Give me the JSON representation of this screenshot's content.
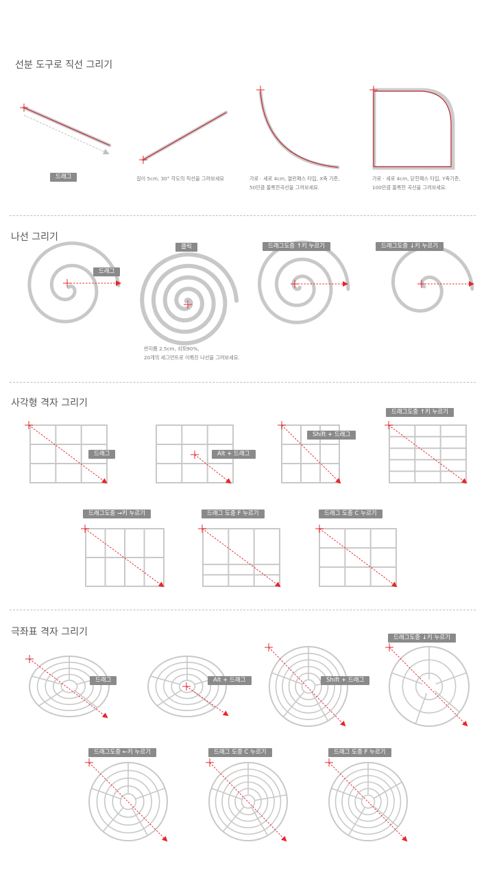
{
  "sections": {
    "line": {
      "title": "선분 도구로 직선 그리기"
    },
    "spiral": {
      "title": "나선 그리기"
    },
    "rect_grid": {
      "title": "사각형 격자 그리기"
    },
    "polar_grid": {
      "title": "극좌표 격자 그리기"
    }
  },
  "line": {
    "drag_tag": "드래그",
    "caption1": "길이 5cm, 30° 각도의 직선을 그려보세요",
    "caption2_line1": "가로 · 세로 4cm, 열린패스 타입, X축 기준,",
    "caption2_line2": "50만큼 볼록한곡선을 그려보세요.",
    "caption3_line1": "가로 · 세로 4cm, 닫힌패스 타입, Y축기준,",
    "caption3_line2": "100만큼 볼록한 곡선을 그려보세요."
  },
  "spiral": {
    "drag_tag": "드래그",
    "click_tag": "클릭",
    "up_tag": "드래그도중 ↑키 누르기",
    "down_tag": "드래그도중 ↓키 누르기",
    "caption_line1": "반지름 2.5cm, 쇠퇴90%,",
    "caption_line2": "20개의 세그먼트로 이뤄진 나선을 그려보세요."
  },
  "rect_grid": {
    "drag_tag": "드래그",
    "alt_tag": "Alt + 드래그",
    "shift_tag": "Shift + 드래그",
    "up_tag": "드래그도중 ↑키 누르기",
    "right_tag": "드래그도중 →키 누르기",
    "f_tag": "드래그 도중 F 누르기",
    "c_tag": "드래그 도중 C 누르기"
  },
  "polar_grid": {
    "drag_tag": "드래그",
    "alt_tag": "Alt + 드래그",
    "shift_tag": "Shift + 드래그",
    "down_tag": "드래그도중 ↓키 누르기",
    "left_tag": "드래그도중 ←키 누르기",
    "c_tag": "드래그 도중 C 누르기",
    "f_tag": "드래그 도중 F 누르기"
  },
  "colors": {
    "accent": "#e8262c",
    "line": "#c8c8c8",
    "tag": "#8a8a8a",
    "curve": "#b8232e"
  }
}
